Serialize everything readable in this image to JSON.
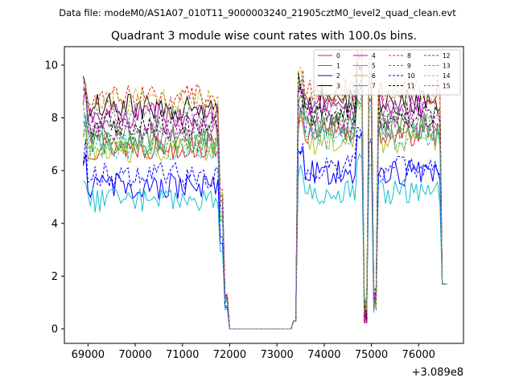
{
  "chart_data": {
    "type": "line",
    "suptitle": "Data file: modeM0/AS1A07_010T11_9000003240_21905cztM0_level2_quad_clean.evt",
    "title": "Quadrant 3 module wise count rates with 100.0s bins.",
    "xlabel": "",
    "ylabel": "",
    "x_offset_label": "+3.089e8",
    "xlim": [
      68500,
      76950
    ],
    "ylim": [
      -0.55,
      10.7
    ],
    "x_ticks": [
      69000,
      70000,
      71000,
      72000,
      73000,
      74000,
      75000,
      76000
    ],
    "x_tick_labels": [
      "69000",
      "70000",
      "71000",
      "72000",
      "73000",
      "74000",
      "75000",
      "76000"
    ],
    "y_ticks": [
      0,
      2,
      4,
      6,
      8,
      10
    ],
    "y_tick_labels": [
      "0",
      "2",
      "4",
      "6",
      "8",
      "10"
    ],
    "legend_position": "top-right",
    "legend_columns": 4,
    "segments": [
      {
        "start": 68900,
        "end": 71800,
        "kind": "active"
      },
      {
        "start": 71800,
        "end": 72000,
        "kind": "drop"
      },
      {
        "start": 72000,
        "end": 73300,
        "kind": "zero"
      },
      {
        "start": 73300,
        "end": 73500,
        "kind": "rise"
      },
      {
        "start": 73500,
        "end": 74700,
        "kind": "active"
      },
      {
        "start": 74700,
        "end": 74850,
        "kind": "spike"
      },
      {
        "start": 74850,
        "end": 74950,
        "kind": "dip"
      },
      {
        "start": 74950,
        "end": 75050,
        "kind": "spike"
      },
      {
        "start": 75050,
        "end": 76500,
        "kind": "active"
      },
      {
        "start": 76500,
        "end": 76600,
        "kind": "fall"
      }
    ],
    "end_value": 1.7,
    "series": [
      {
        "name": "0",
        "color": "#d62728",
        "dash": "solid",
        "level": 6.9,
        "after": 7.4
      },
      {
        "name": "1",
        "color": "#2ca02c",
        "dash": "solid",
        "level": 7.1,
        "after": 7.7
      },
      {
        "name": "2",
        "color": "#0000ff",
        "dash": "solid",
        "level": 5.4,
        "after": 5.9
      },
      {
        "name": "3",
        "color": "#000000",
        "dash": "solid",
        "level": 8.4,
        "after": 8.6
      },
      {
        "name": "4",
        "color": "#c000c0",
        "dash": "solid",
        "level": 8.1,
        "after": 8.5
      },
      {
        "name": "5",
        "color": "#17becf",
        "dash": "solid",
        "level": 4.9,
        "after": 5.2
      },
      {
        "name": "6",
        "color": "#bcbd22",
        "dash": "solid",
        "level": 6.8,
        "after": 7.1
      },
      {
        "name": "7",
        "color": "#7f7f7f",
        "dash": "solid",
        "level": 7.4,
        "after": 7.6
      },
      {
        "name": "8",
        "color": "#d62728",
        "dash": "dashed",
        "level": 8.8,
        "after": 9.0
      },
      {
        "name": "9",
        "color": "#2ca02c",
        "dash": "dashed",
        "level": 7.2,
        "after": 7.7
      },
      {
        "name": "10",
        "color": "#0000ff",
        "dash": "dashed",
        "level": 5.8,
        "after": 6.1
      },
      {
        "name": "11",
        "color": "#000000",
        "dash": "dashed",
        "level": 7.8,
        "after": 8.1
      },
      {
        "name": "12",
        "color": "#c000c0",
        "dash": "dashed",
        "level": 7.6,
        "after": 7.9
      },
      {
        "name": "13",
        "color": "#17becf",
        "dash": "dashed",
        "level": 6.9,
        "after": 7.3
      },
      {
        "name": "14",
        "color": "#bcbd22",
        "dash": "dashed",
        "level": 8.6,
        "after": 8.9
      },
      {
        "name": "15",
        "color": "#7f7f7f",
        "dash": "dashed",
        "level": 8.0,
        "after": 8.3
      }
    ]
  }
}
